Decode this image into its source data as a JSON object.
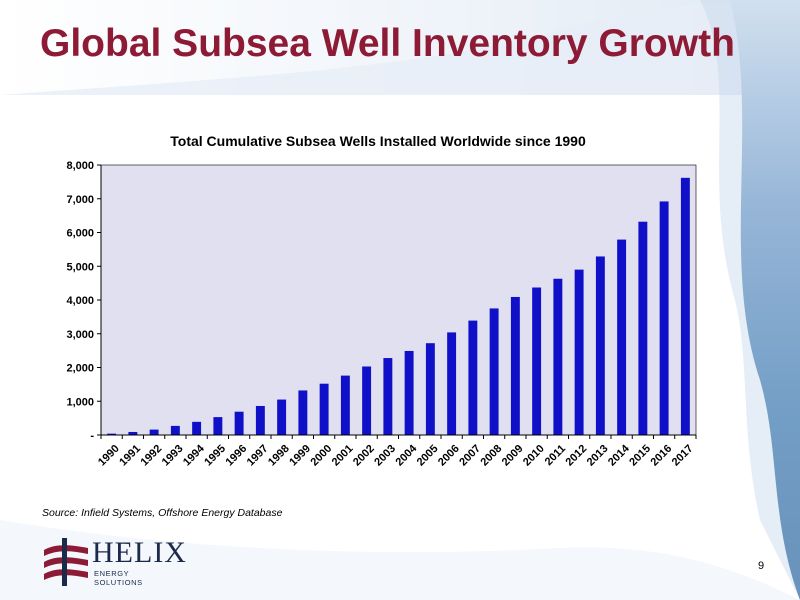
{
  "slide": {
    "title": "Global Subsea Well Inventory Growth",
    "source": "Source: Infield Systems, Offshore Energy Database",
    "page_number": "9",
    "logo": {
      "name": "HELIX",
      "subtitle": "ENERGY SOLUTIONS"
    }
  },
  "colors": {
    "title": "#8e1b36",
    "bar": "#1010c8",
    "plot_bg": "#e0e0f0",
    "logo_red": "#8e1b36",
    "logo_navy": "#1b2a4a"
  },
  "chart_data": {
    "type": "bar",
    "title": "Total Cumulative Subsea Wells Installed Worldwide since 1990",
    "xlabel": "",
    "ylabel": "",
    "ylim": [
      0,
      8000
    ],
    "y_ticks": [
      0,
      1000,
      2000,
      3000,
      4000,
      5000,
      6000,
      7000,
      8000
    ],
    "y_tick_labels": [
      "-",
      "1,000",
      "2,000",
      "3,000",
      "4,000",
      "5,000",
      "6,000",
      "7,000",
      "8,000"
    ],
    "categories": [
      "1990",
      "1991",
      "1992",
      "1993",
      "1994",
      "1995",
      "1996",
      "1997",
      "1998",
      "1999",
      "2000",
      "2001",
      "2002",
      "2003",
      "2004",
      "2005",
      "2006",
      "2007",
      "2008",
      "2009",
      "2010",
      "2011",
      "2012",
      "2013",
      "2014",
      "2015",
      "2016",
      "2017"
    ],
    "values": [
      40,
      90,
      160,
      270,
      390,
      530,
      690,
      860,
      1050,
      1320,
      1520,
      1760,
      2030,
      2280,
      2490,
      2720,
      3040,
      3390,
      3750,
      4090,
      4370,
      4630,
      4900,
      5290,
      5790,
      6320,
      6920,
      7620
    ],
    "grid": false,
    "legend": "none"
  }
}
